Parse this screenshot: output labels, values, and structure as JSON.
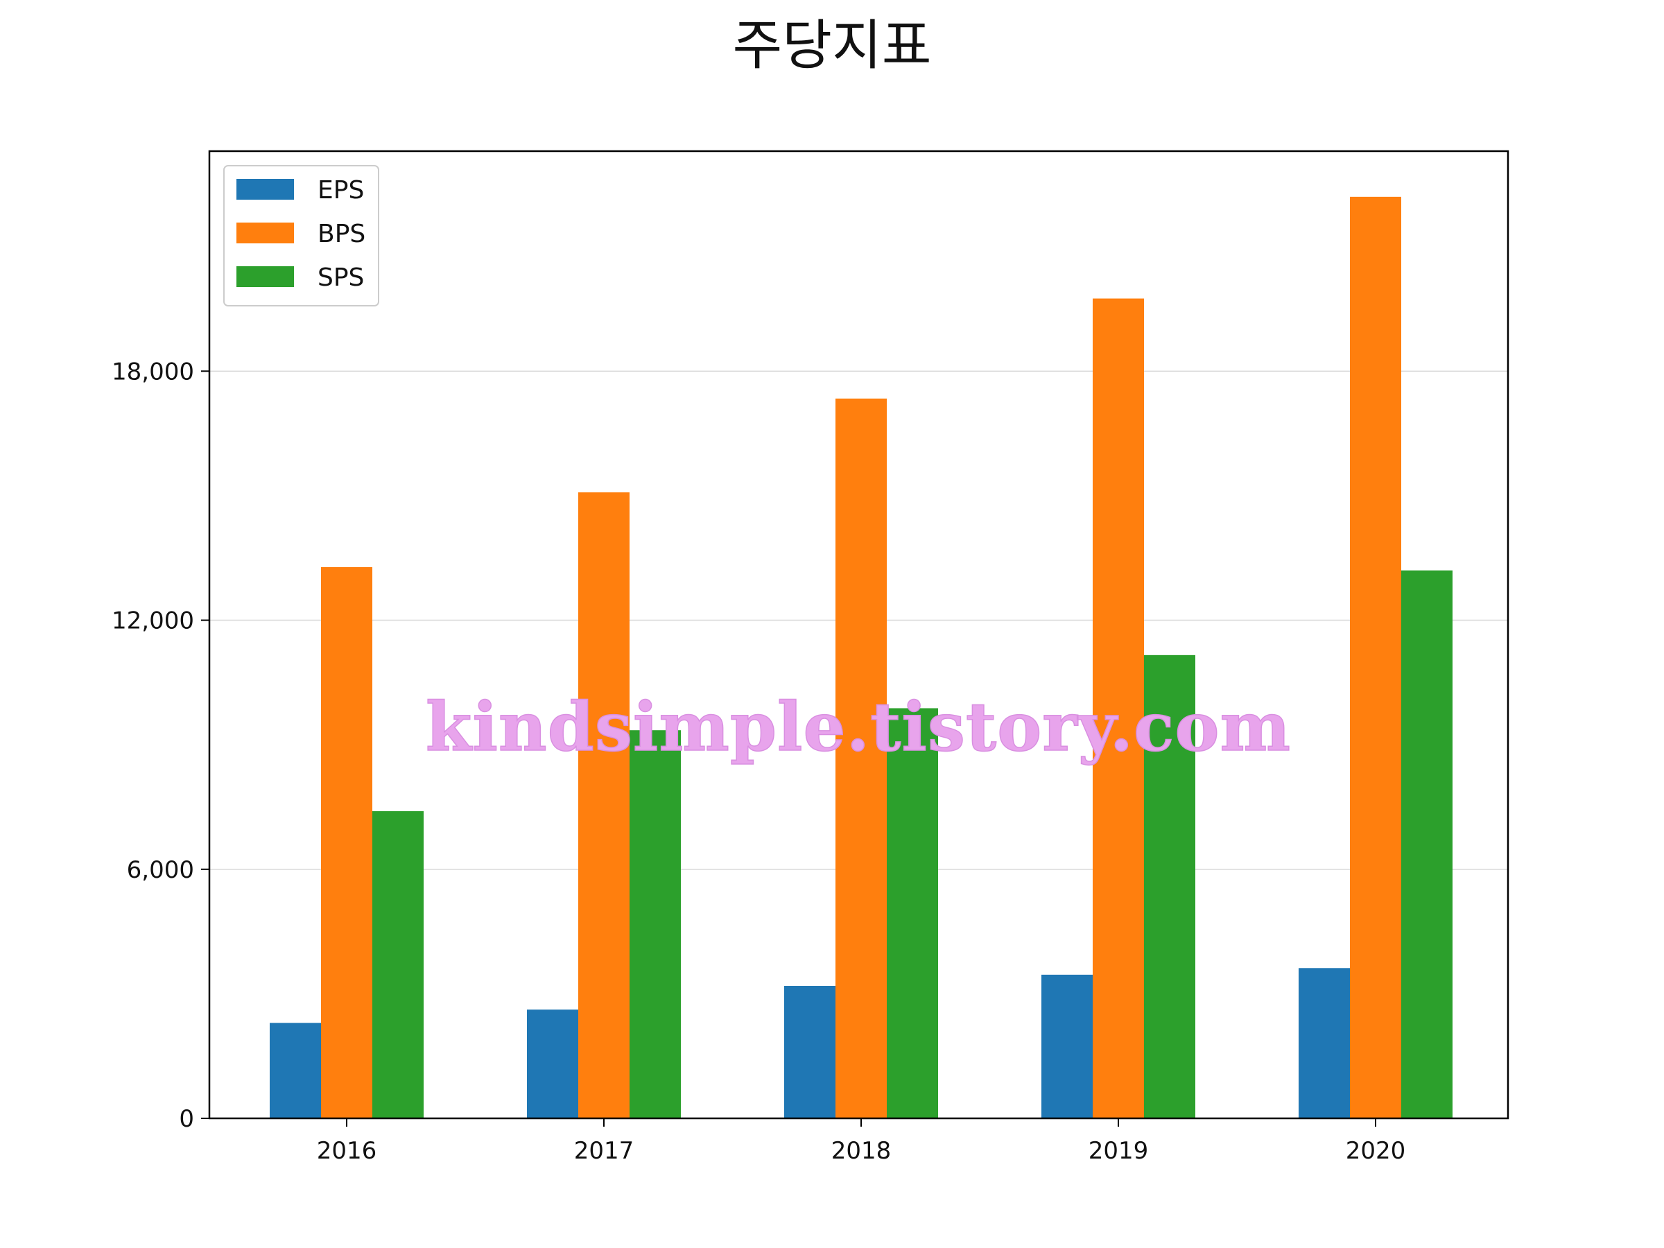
{
  "chart_data": {
    "type": "bar",
    "title": "주당지표",
    "xlabel": "",
    "ylabel": "",
    "categories": [
      "2016",
      "2017",
      "2018",
      "2019",
      "2020"
    ],
    "series": [
      {
        "name": "EPS",
        "color": "#1f77b4",
        "values": [
          2300,
          2620,
          3190,
          3460,
          3620
        ]
      },
      {
        "name": "BPS",
        "color": "#ff7f0e",
        "values": [
          13280,
          15080,
          17340,
          19750,
          22200
        ]
      },
      {
        "name": "SPS",
        "color": "#2ca02c",
        "values": [
          7400,
          9350,
          9880,
          11160,
          13200
        ]
      }
    ],
    "ylim": [
      0,
      23300
    ],
    "yticks": [
      0,
      6000,
      12000,
      18000
    ],
    "ytick_labels": [
      "0",
      "6,000",
      "12,000",
      "18,000"
    ],
    "grid": "horizontal",
    "legend": "top-left",
    "watermark": "kindsimple.tistory.com"
  }
}
